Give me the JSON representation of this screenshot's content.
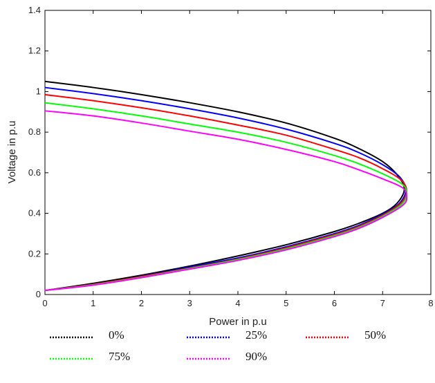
{
  "chart_data": {
    "type": "line",
    "title": "",
    "xlabel": "Power in p.u",
    "ylabel": "Voltage in p.u",
    "xlim": [
      0,
      8
    ],
    "ylim": [
      0,
      1.4
    ],
    "xticks": [
      "0",
      "1",
      "2",
      "3",
      "4",
      "5",
      "6",
      "7",
      "8"
    ],
    "yticks": [
      "0",
      "0.2",
      "0.4",
      "0.6",
      "0.8",
      "1",
      "1.2",
      "1.4"
    ],
    "grid": false,
    "legend_position": "bottom",
    "series": [
      {
        "name": "0%",
        "color": "#000000",
        "x": [
          0,
          1,
          2,
          3,
          4,
          5,
          6,
          6.5,
          7,
          7.3,
          7.45,
          7.3,
          7,
          6.5,
          6,
          5,
          4,
          3,
          2,
          1,
          0
        ],
        "y": [
          1.05,
          1.02,
          0.985,
          0.945,
          0.9,
          0.845,
          0.77,
          0.72,
          0.655,
          0.59,
          0.52,
          0.45,
          0.4,
          0.35,
          0.31,
          0.245,
          0.19,
          0.14,
          0.095,
          0.055,
          0.02
        ]
      },
      {
        "name": "25%",
        "color": "#0000ff",
        "x": [
          0,
          1,
          2,
          3,
          4,
          5,
          6,
          6.5,
          7,
          7.35,
          7.48,
          7.35,
          7,
          6.5,
          6,
          5,
          4,
          3,
          2,
          1,
          0
        ],
        "y": [
          1.02,
          0.99,
          0.955,
          0.915,
          0.87,
          0.815,
          0.745,
          0.7,
          0.64,
          0.58,
          0.515,
          0.45,
          0.395,
          0.34,
          0.3,
          0.235,
          0.18,
          0.135,
          0.09,
          0.05,
          0.02
        ]
      },
      {
        "name": "50%",
        "color": "#ff0000",
        "x": [
          0,
          1,
          2,
          3,
          4,
          5,
          6,
          6.5,
          7,
          7.38,
          7.5,
          7.38,
          7,
          6.5,
          6,
          5,
          4,
          3,
          2,
          1,
          0
        ],
        "y": [
          0.985,
          0.955,
          0.92,
          0.88,
          0.835,
          0.785,
          0.715,
          0.675,
          0.62,
          0.565,
          0.51,
          0.45,
          0.39,
          0.335,
          0.295,
          0.23,
          0.175,
          0.13,
          0.088,
          0.05,
          0.02
        ]
      },
      {
        "name": "75%",
        "color": "#00ff00",
        "x": [
          0,
          1,
          2,
          3,
          4,
          5,
          6,
          6.5,
          7,
          7.4,
          7.5,
          7.4,
          7,
          6.5,
          6,
          5,
          4,
          3,
          2,
          1,
          0
        ],
        "y": [
          0.945,
          0.915,
          0.88,
          0.84,
          0.8,
          0.75,
          0.685,
          0.645,
          0.595,
          0.545,
          0.5,
          0.445,
          0.385,
          0.33,
          0.29,
          0.225,
          0.172,
          0.128,
          0.085,
          0.048,
          0.02
        ]
      },
      {
        "name": "90%",
        "color": "#ff00ff",
        "x": [
          0,
          1,
          2,
          3,
          4,
          5,
          6,
          6.5,
          7,
          7.42,
          7.5,
          7.42,
          7,
          6.5,
          6,
          5,
          4,
          3,
          2,
          1,
          0
        ],
        "y": [
          0.905,
          0.88,
          0.845,
          0.805,
          0.765,
          0.715,
          0.655,
          0.615,
          0.57,
          0.525,
          0.48,
          0.44,
          0.38,
          0.325,
          0.285,
          0.22,
          0.168,
          0.125,
          0.083,
          0.046,
          0.02
        ]
      }
    ]
  }
}
